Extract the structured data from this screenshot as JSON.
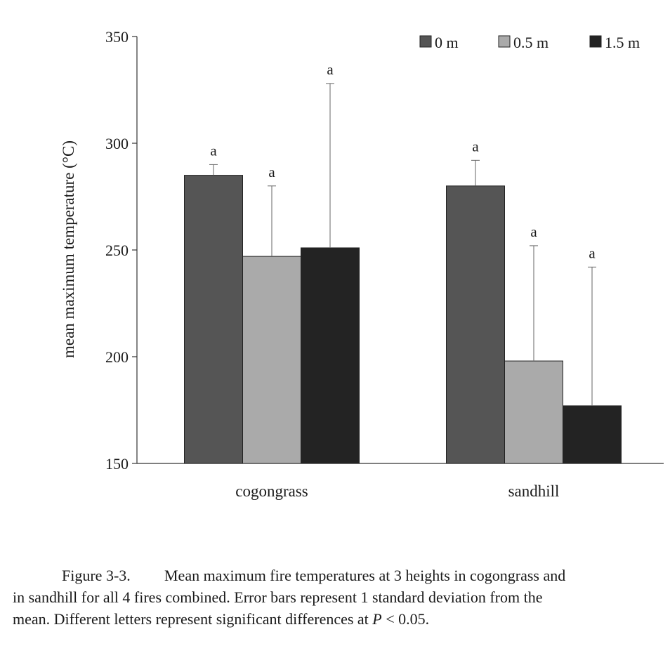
{
  "chart_data": {
    "type": "bar",
    "categories": [
      "cogongrass",
      "sandhill"
    ],
    "series": [
      {
        "name": "0 m",
        "color": "#555555",
        "values": [
          285,
          280
        ],
        "sd": [
          5,
          12
        ],
        "letters": [
          "a",
          "a"
        ]
      },
      {
        "name": "0.5 m",
        "color": "#aaaaaa",
        "values": [
          247,
          198
        ],
        "sd": [
          33,
          54
        ],
        "letters": [
          "a",
          "a"
        ]
      },
      {
        "name": "1.5 m",
        "color": "#232323",
        "values": [
          251,
          177
        ],
        "sd": [
          77,
          65
        ],
        "letters": [
          "a",
          "a"
        ]
      }
    ],
    "ylabel": "mean maximum temperature (°C)",
    "xlabel": "",
    "ylim": [
      150,
      350
    ],
    "yticks": [
      150,
      200,
      250,
      300,
      350
    ],
    "legend_position": "top-right",
    "grid": false,
    "error_bars": "1 standard deviation"
  },
  "caption": {
    "label": "Figure 3-3.",
    "line1": "Mean maximum fire temperatures at 3 heights in cogongrass and",
    "line2": "in sandhill for all 4 fires combined. Error bars represent 1 standard deviation from the",
    "line3_pre": "mean. Different letters represent significant differences at ",
    "p_symbol": "P",
    "line3_post": " < 0.05."
  }
}
